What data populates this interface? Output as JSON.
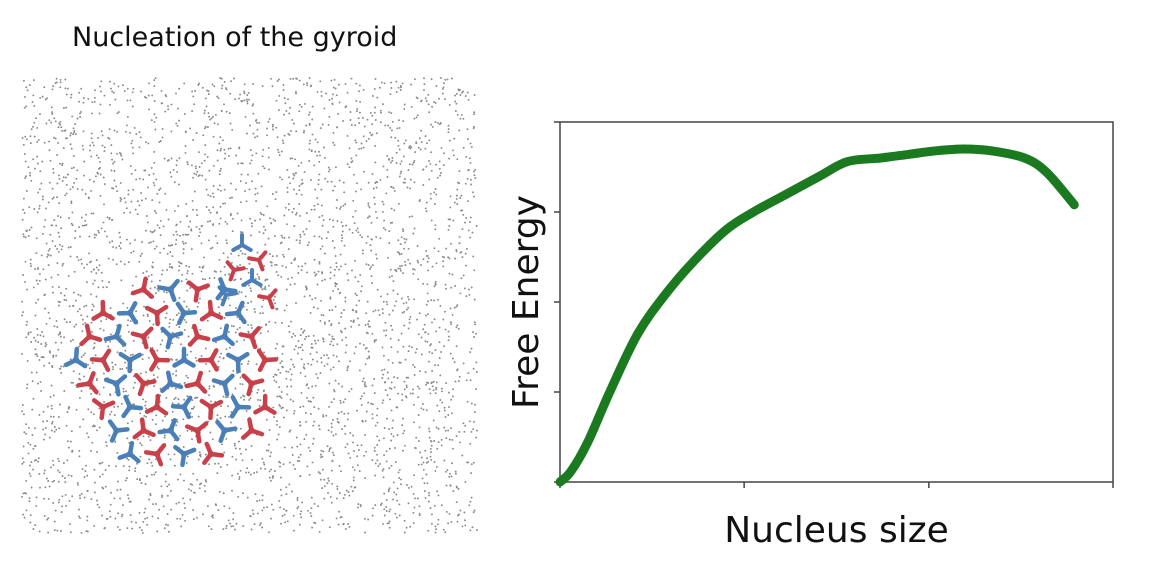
{
  "figure": {
    "title": "Nucleation of the gyroid"
  },
  "colors": {
    "curve": "#1b7a1f",
    "network_red": "#c8404a",
    "network_blue": "#4a7fb8",
    "particles": "#8a8a8a"
  },
  "chart_data": {
    "type": "line",
    "title": "",
    "xlabel": "Nucleus size",
    "ylabel": "Free Energy",
    "xlim": [
      0,
      1
    ],
    "ylim": [
      0,
      1
    ],
    "xticks": [
      0,
      0.333,
      0.667,
      1
    ],
    "yticks": [
      0,
      0.25,
      0.5,
      0.75,
      1
    ],
    "grid": false,
    "series": [
      {
        "x": [
          0.0,
          0.02,
          0.05,
          0.09,
          0.14,
          0.19,
          0.24,
          0.3,
          0.35,
          0.41,
          0.47,
          0.52,
          0.58,
          0.63,
          0.68,
          0.73,
          0.78,
          0.84,
          0.88,
          0.93
        ],
        "y": [
          0.0,
          0.03,
          0.11,
          0.25,
          0.41,
          0.52,
          0.61,
          0.7,
          0.75,
          0.8,
          0.85,
          0.89,
          0.9,
          0.91,
          0.92,
          0.925,
          0.92,
          0.9,
          0.86,
          0.77
        ]
      }
    ]
  }
}
